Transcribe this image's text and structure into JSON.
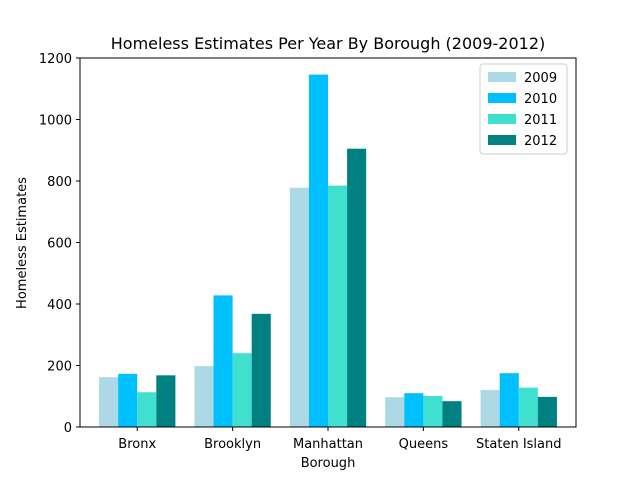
{
  "chart_data": {
    "type": "bar",
    "title": "Homeless Estimates Per Year By Borough (2009-2012)",
    "xlabel": "Borough",
    "ylabel": "Homeless Estimates",
    "categories": [
      "Bronx",
      "Brooklyn",
      "Manhattan",
      "Queens",
      "Staten Island"
    ],
    "ylim": [
      0,
      1200
    ],
    "yticks": [
      0,
      200,
      400,
      600,
      800,
      1000,
      1200
    ],
    "grid": false,
    "legend_position": "top-right",
    "series": [
      {
        "name": "2009",
        "color": "#add8e6",
        "values": [
          162,
          198,
          778,
          97,
          120
        ]
      },
      {
        "name": "2010",
        "color": "#00bfff",
        "values": [
          173,
          428,
          1146,
          110,
          175
        ]
      },
      {
        "name": "2011",
        "color": "#40e0d0",
        "values": [
          113,
          240,
          785,
          101,
          128
        ]
      },
      {
        "name": "2012",
        "color": "#008080",
        "values": [
          168,
          368,
          905,
          84,
          98
        ]
      }
    ]
  }
}
